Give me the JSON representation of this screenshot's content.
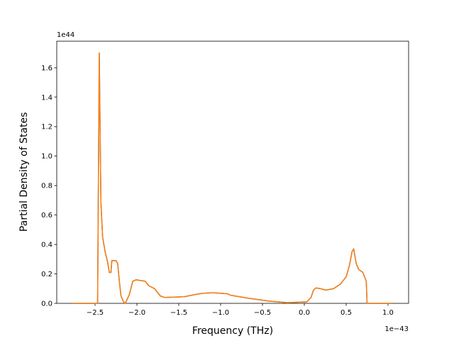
{
  "chart_data": {
    "type": "line",
    "x_label": "Frequency (THz)",
    "y_label": "Partial Density of States",
    "x_offset_text": "1e−43",
    "y_offset_text": "1e44",
    "x": [
      -2.77,
      -2.47,
      -2.45,
      -2.43,
      -2.41,
      -2.38,
      -2.35,
      -2.33,
      -2.31,
      -2.3,
      -2.25,
      -2.23,
      -2.21,
      -2.19,
      -2.16,
      -2.14,
      -2.09,
      -2.05,
      -2.01,
      -1.9,
      -1.86,
      -1.79,
      -1.72,
      -1.67,
      -1.43,
      -1.35,
      -1.22,
      -1.09,
      -0.92,
      -0.88,
      -0.67,
      -0.42,
      -0.2,
      0.03,
      0.08,
      0.11,
      0.14,
      0.19,
      0.26,
      0.35,
      0.43,
      0.5,
      0.54,
      0.57,
      0.59,
      0.62,
      0.65,
      0.7,
      0.74,
      0.75,
      1.03,
      1.054
    ],
    "series": [
      {
        "color": "#1f77b4",
        "values": [
          0,
          0,
          1.7,
          0.68,
          0.45,
          0.35,
          0.28,
          0.21,
          0.21,
          0.29,
          0.29,
          0.27,
          0.15,
          0.05,
          0.01,
          0,
          0.06,
          0.15,
          0.16,
          0.15,
          0.12,
          0.1,
          0.05,
          0.04,
          0.045,
          0.055,
          0.068,
          0.072,
          0.065,
          0.055,
          0.035,
          0.015,
          0.005,
          0.01,
          0.04,
          0.09,
          0.105,
          0.1,
          0.09,
          0.1,
          0.13,
          0.18,
          0.26,
          0.35,
          0.37,
          0.27,
          0.23,
          0.21,
          0.15,
          0,
          0,
          0
        ]
      },
      {
        "color": "#ff7f0e",
        "values": [
          0,
          0,
          1.7,
          0.68,
          0.45,
          0.35,
          0.28,
          0.21,
          0.21,
          0.29,
          0.29,
          0.27,
          0.15,
          0.05,
          0.01,
          0,
          0.06,
          0.15,
          0.16,
          0.15,
          0.12,
          0.1,
          0.05,
          0.04,
          0.045,
          0.055,
          0.068,
          0.072,
          0.065,
          0.055,
          0.035,
          0.015,
          0.005,
          0.01,
          0.04,
          0.09,
          0.105,
          0.1,
          0.09,
          0.1,
          0.13,
          0.18,
          0.26,
          0.35,
          0.37,
          0.27,
          0.23,
          0.21,
          0.15,
          0,
          0,
          0
        ]
      }
    ],
    "xlim": [
      -2.958,
      1.246
    ],
    "ylim": [
      0,
      1.78
    ],
    "xticks": [
      {
        "value": -2.5,
        "label": "−2.5"
      },
      {
        "value": -2.0,
        "label": "−2.0"
      },
      {
        "value": -1.5,
        "label": "−1.5"
      },
      {
        "value": -1.0,
        "label": "−1.0"
      },
      {
        "value": -0.5,
        "label": "−0.5"
      },
      {
        "value": 0,
        "label": "0.0"
      },
      0.5,
      {
        "value": 1,
        "label": "1.0"
      }
    ],
    "yticks": [
      {
        "value": 0,
        "label": "0.0"
      },
      0.2,
      0.4,
      0.6,
      0.8,
      {
        "value": 1,
        "label": "1.0"
      },
      1.2,
      1.4,
      1.6
    ]
  }
}
